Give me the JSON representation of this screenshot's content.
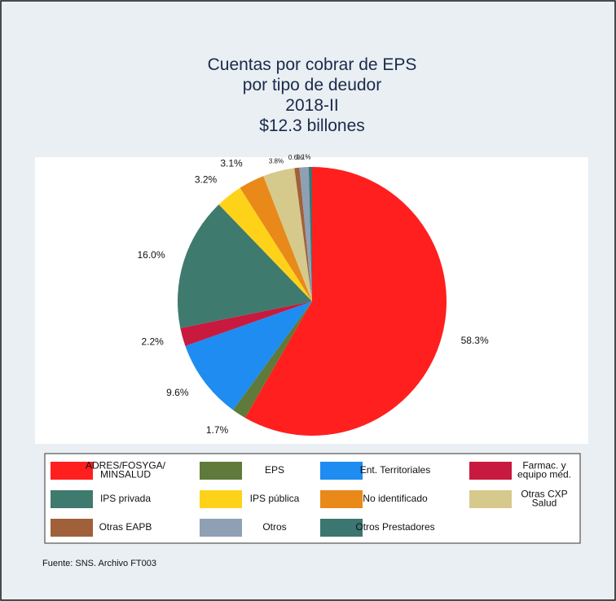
{
  "chart_data": {
    "type": "pie",
    "title": "Cuentas por cobrar de EPS\npor tipo de deudor\n2018-II\n$12.3 billones",
    "categories": [
      "ADRES/FOSYGA/\nMINSALUD",
      "EPS",
      "Ent. Territoriales",
      "Farmac. y\nequipo méd.",
      "IPS privada",
      "IPS pública",
      "No identificado",
      "Otras CXP\nSalud",
      "Otras EAPB",
      "Otros",
      "Otros Prestadores"
    ],
    "values": [
      58.3,
      1.7,
      9.6,
      2.2,
      16.0,
      3.2,
      3.1,
      3.8,
      0.6,
      1.1,
      0.4
    ],
    "value_labels": [
      "58.3%",
      "1.7%",
      "9.6%",
      "2.2%",
      "16.0%",
      "3.2%",
      "3.1%",
      "3.8%",
      "0.6%",
      "1.1%",
      null
    ],
    "colors": [
      "#ff1f1f",
      "#5f7a3a",
      "#1e8cf0",
      "#c8193f",
      "#3f7a6e",
      "#ffd21a",
      "#e8891a",
      "#d6c98c",
      "#a0603a",
      "#8fa0b5",
      "#3b7670"
    ],
    "source": "Fuente: SNS. Archivo FT003"
  }
}
